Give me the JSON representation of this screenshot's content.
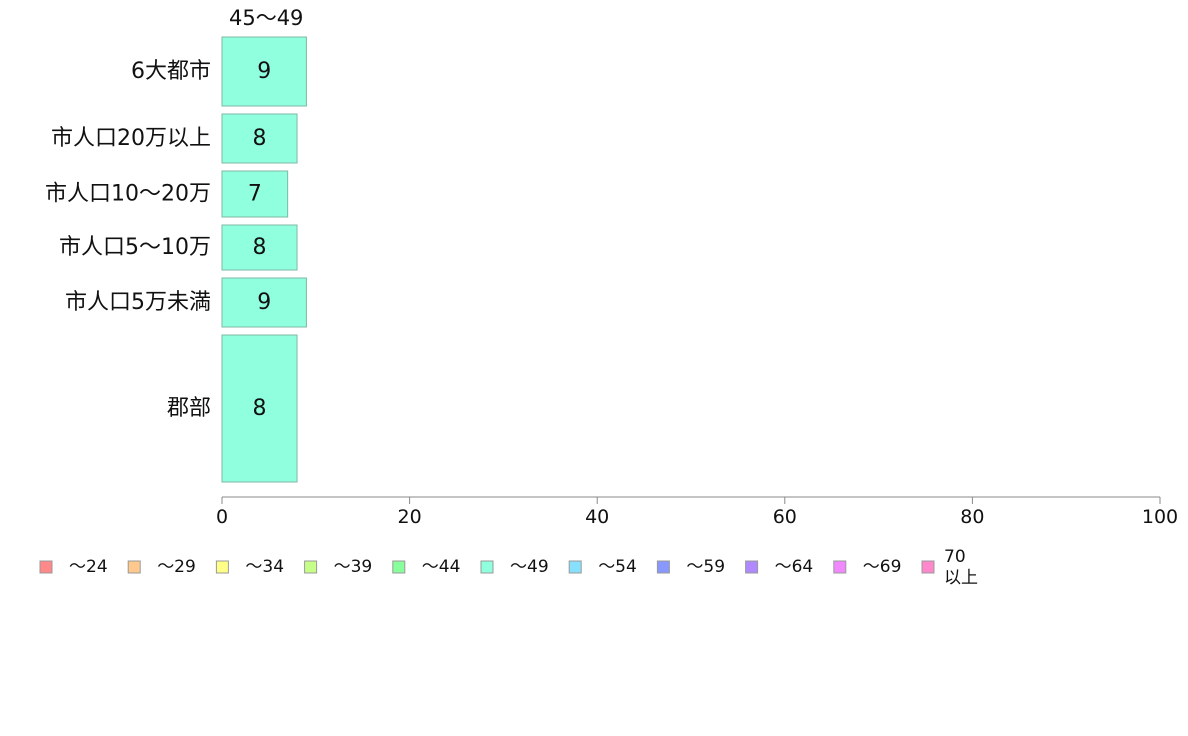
{
  "chart_data": {
    "type": "bar",
    "orientation": "horizontal",
    "stacked": true,
    "title": "",
    "xlabel": "",
    "ylabel": "",
    "xlim": [
      0,
      100
    ],
    "x_ticks": [
      0,
      20,
      40,
      60,
      80,
      100
    ],
    "grid": false,
    "legend_position": "bottom",
    "categories": [
      "6大都市",
      "市人口20万以上",
      "市人口10〜20万",
      "市人口5〜10万",
      "市人口5万未満",
      "郡部"
    ],
    "series_label": "45〜49",
    "series": [
      {
        "name": "45〜49",
        "values": [
          9,
          8,
          7,
          8,
          9,
          8
        ],
        "color": "#8fffdd"
      }
    ],
    "legend": [
      {
        "label": "〜24",
        "color": "#ff8888"
      },
      {
        "label": "〜29",
        "color": "#ffc88c"
      },
      {
        "label": "〜34",
        "color": "#ffff88"
      },
      {
        "label": "〜39",
        "color": "#c6ff88"
      },
      {
        "label": "〜44",
        "color": "#88ff9a"
      },
      {
        "label": "〜49",
        "color": "#8fffdd"
      },
      {
        "label": "〜54",
        "color": "#88e0ff"
      },
      {
        "label": "〜59",
        "color": "#8898ff"
      },
      {
        "label": "〜64",
        "color": "#b088ff"
      },
      {
        "label": "〜69",
        "color": "#f288ff"
      },
      {
        "label": "70\n以上",
        "color": "#ff88cc"
      }
    ]
  }
}
